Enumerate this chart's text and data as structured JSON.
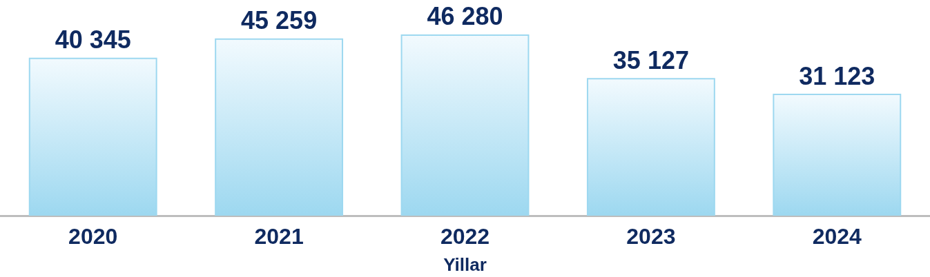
{
  "chart_data": {
    "type": "bar",
    "xlabel": "Yillar",
    "categories": [
      "2020",
      "2021",
      "2022",
      "2023",
      "2024"
    ],
    "values": [
      40345,
      45259,
      46280,
      35127,
      31123
    ],
    "value_labels": [
      "40 345",
      "45 259",
      "46 280",
      "35 127",
      "31 123"
    ],
    "color": "#9dd8f0",
    "grid": false
  }
}
